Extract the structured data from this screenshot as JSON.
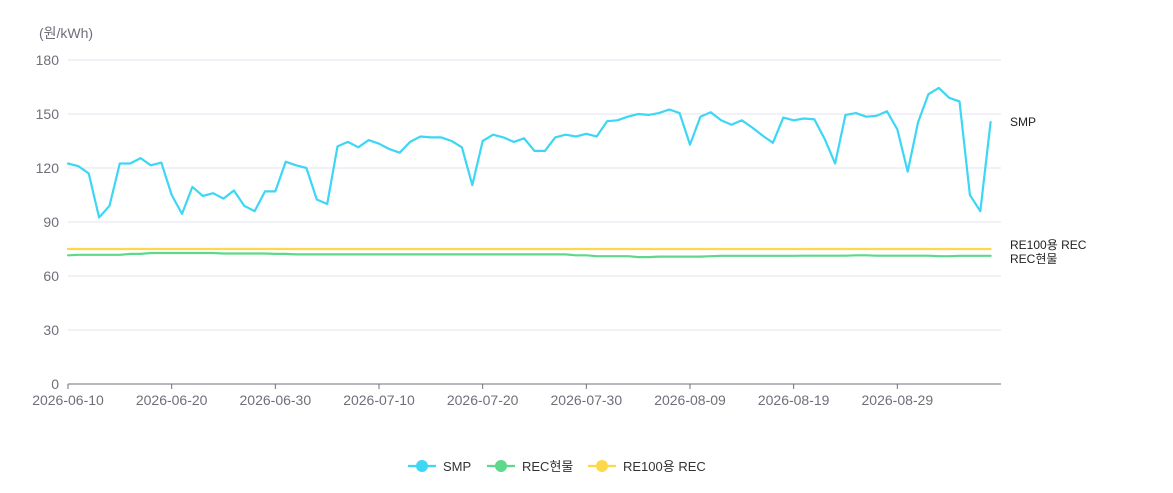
{
  "chart_data": {
    "type": "line",
    "y_unit": "(원/kWh)",
    "ylim": [
      0,
      180
    ],
    "y_ticks": [
      0,
      30,
      60,
      90,
      120,
      150,
      180
    ],
    "x_tick_labels": [
      "2026-06-10",
      "2026-06-20",
      "2026-06-30",
      "2026-07-10",
      "2026-07-20",
      "2026-07-30",
      "2026-08-09",
      "2026-08-19",
      "2026-08-29"
    ],
    "x_start": "2026-06-10",
    "x_end": "2026-09-08",
    "grid": true,
    "legend_position": "bottom",
    "series": [
      {
        "name": "SMP",
        "color": "#3dd6f5",
        "end_label": "SMP",
        "values": [
          122.5,
          121,
          117,
          92.5,
          99,
          122.5,
          122.5,
          125.5,
          121.5,
          123,
          105,
          94.5,
          109.5,
          104.5,
          106,
          103,
          107.5,
          99,
          96,
          107,
          107,
          123.5,
          121.5,
          120,
          102.5,
          100,
          132,
          134.5,
          131.5,
          135.5,
          133.5,
          130.5,
          128.5,
          134.5,
          137.5,
          137,
          137,
          135,
          131.5,
          110.5,
          135,
          138.5,
          137,
          134.5,
          136.5,
          129.5,
          129.5,
          137,
          138.5,
          137.5,
          139,
          137.5,
          146,
          146.5,
          148.5,
          150,
          149.5,
          150.5,
          152.5,
          150.5,
          133,
          148.5,
          151,
          146.5,
          144,
          146.5,
          142.5,
          138,
          134,
          148,
          146.5,
          147.5,
          147,
          136,
          122.5,
          149.5,
          150.5,
          148.5,
          149,
          151.5,
          141.5,
          118,
          145.5,
          161,
          164.5,
          159,
          157,
          105,
          96,
          145.5
        ]
      },
      {
        "name": "REC현물",
        "color": "#5cd98a",
        "end_label": "REC현물",
        "values": [
          71.5,
          71.8,
          71.8,
          71.8,
          71.8,
          71.8,
          72.3,
          72.3,
          72.8,
          72.8,
          72.8,
          72.8,
          72.8,
          72.8,
          72.8,
          72.5,
          72.5,
          72.5,
          72.5,
          72.5,
          72.3,
          72.3,
          72,
          72,
          72,
          72,
          72,
          72,
          72,
          72,
          72,
          72,
          72,
          72,
          72,
          72,
          72,
          72,
          72,
          72,
          72,
          72,
          72,
          72,
          72,
          72,
          72,
          72,
          72,
          71.5,
          71.5,
          71,
          71,
          71,
          71,
          70.5,
          70.5,
          70.8,
          70.8,
          70.8,
          70.8,
          70.8,
          71,
          71.2,
          71.2,
          71.2,
          71.2,
          71.2,
          71.2,
          71.2,
          71.2,
          71.3,
          71.3,
          71.3,
          71.3,
          71.3,
          71.5,
          71.5,
          71.3,
          71.3,
          71.3,
          71.3,
          71.3,
          71.3,
          71,
          71,
          71.2,
          71.2,
          71.2,
          71.2
        ]
      },
      {
        "name": "RE100용 REC",
        "color": "#fdd84d",
        "end_label": "RE100용 REC",
        "values": [
          75,
          75,
          75,
          75,
          75,
          75,
          75,
          75,
          75,
          75,
          75,
          75,
          75,
          75,
          75,
          75,
          75,
          75,
          75,
          75,
          75,
          75,
          75,
          75,
          75,
          75,
          75,
          75,
          75,
          75,
          75,
          75,
          75,
          75,
          75,
          75,
          75,
          75,
          75,
          75,
          75,
          75,
          75,
          75,
          75,
          75,
          75,
          75,
          75,
          75,
          75,
          75,
          75,
          75,
          75,
          75,
          75,
          75,
          75,
          75,
          75,
          75,
          75,
          75,
          75,
          75,
          75,
          75,
          75,
          75,
          75,
          75,
          75,
          75,
          75,
          75,
          75,
          75,
          75,
          75,
          75,
          75,
          75,
          75,
          75,
          75,
          75,
          75,
          75,
          75
        ]
      }
    ]
  }
}
